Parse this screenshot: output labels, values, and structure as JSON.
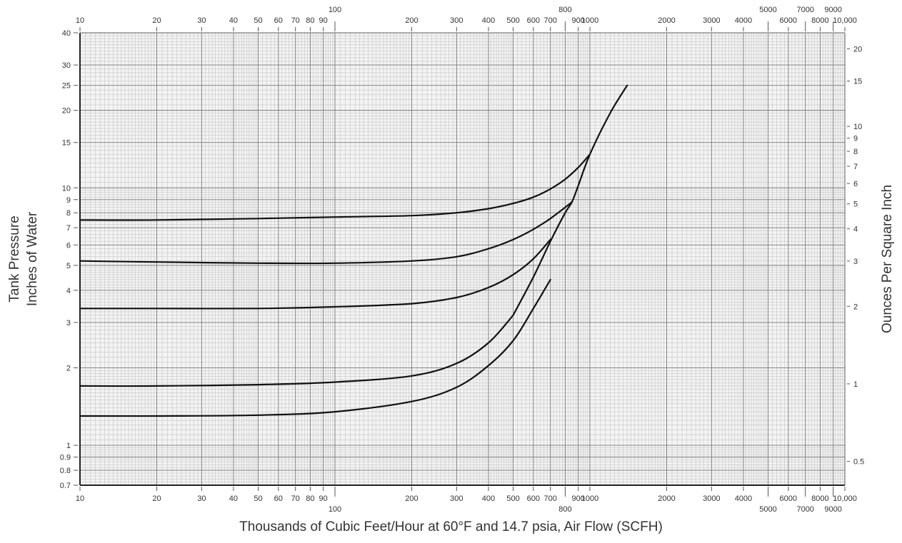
{
  "chart_data": {
    "type": "line",
    "x_scale": "log",
    "y_scale": "log",
    "xlim": [
      10,
      10000
    ],
    "ylim": [
      0.7,
      40
    ],
    "xlabel": "Thousands of Cubic Feet/Hour at 60°F and 14.7 psia, Air Flow (SCFH)",
    "ylabel_lines": [
      "Tank Pressure",
      "Inches of Water"
    ],
    "ylabel_right": "Ounces Per Square Inch",
    "x_ticks": [
      10,
      20,
      30,
      40,
      50,
      60,
      70,
      80,
      90,
      100,
      200,
      300,
      400,
      500,
      600,
      700,
      800,
      900,
      1000,
      2000,
      3000,
      4000,
      5000,
      6000,
      7000,
      8000,
      9000,
      10000
    ],
    "x_tick_labels": [
      "10",
      "20",
      "30",
      "40",
      "50",
      "60",
      "70",
      "80",
      "90",
      "100",
      "200",
      "300",
      "400",
      "500",
      "600",
      "700",
      "800",
      "900",
      "1000",
      "2000",
      "3000",
      "4000",
      "5000",
      "6000",
      "7000",
      "8000",
      "9000",
      "10,000"
    ],
    "y_ticks": [
      0.7,
      0.8,
      0.9,
      1,
      2,
      3,
      4,
      5,
      6,
      7,
      8,
      9,
      10,
      15,
      20,
      25,
      30,
      40
    ],
    "y_tick_labels": [
      "0.7",
      "0.8",
      "0.9",
      "1",
      "2",
      "3",
      "4",
      "5",
      "6",
      "7",
      "8",
      "9",
      "10",
      "15",
      "20",
      "25",
      "30",
      "40"
    ],
    "right_ticks": [
      0.5,
      1,
      2,
      3,
      4,
      5,
      6,
      7,
      8,
      9,
      10,
      15,
      20
    ],
    "right_tick_labels": [
      "0.5",
      "1",
      "2",
      "3",
      "4",
      "5",
      "6",
      "7",
      "8",
      "9",
      "10",
      "15",
      "20"
    ],
    "grid": true,
    "series": [
      {
        "x": [
          10,
          20,
          50,
          100,
          200,
          300,
          400,
          500,
          600,
          700,
          800,
          900,
          1000
        ],
        "y": [
          7.5,
          7.5,
          7.6,
          7.7,
          7.8,
          8.0,
          8.3,
          8.7,
          9.2,
          9.9,
          10.8,
          12.0,
          13.5
        ]
      },
      {
        "x": [
          10,
          20,
          50,
          100,
          200,
          300,
          400,
          500,
          600,
          700,
          800,
          850
        ],
        "y": [
          5.2,
          5.15,
          5.1,
          5.1,
          5.2,
          5.4,
          5.8,
          6.3,
          6.9,
          7.6,
          8.4,
          8.8
        ]
      },
      {
        "x": [
          10,
          20,
          50,
          100,
          200,
          300,
          400,
          500,
          600,
          700
        ],
        "y": [
          3.4,
          3.4,
          3.4,
          3.45,
          3.55,
          3.75,
          4.1,
          4.6,
          5.3,
          6.3
        ]
      },
      {
        "x": [
          10,
          20,
          50,
          100,
          200,
          300,
          400,
          500
        ],
        "y": [
          1.7,
          1.7,
          1.72,
          1.76,
          1.86,
          2.08,
          2.5,
          3.2
        ]
      },
      {
        "x": [
          10,
          20,
          50,
          100,
          200,
          300,
          400,
          500,
          600,
          700
        ],
        "y": [
          1.3,
          1.3,
          1.31,
          1.35,
          1.48,
          1.68,
          2.04,
          2.55,
          3.4,
          4.4
        ]
      },
      {
        "x": [
          500,
          600,
          700,
          800,
          850,
          900,
          1000,
          1200,
          1400
        ],
        "y": [
          3.2,
          4.5,
          6.2,
          8.0,
          8.8,
          10.2,
          13.5,
          19.5,
          25
        ]
      }
    ]
  }
}
